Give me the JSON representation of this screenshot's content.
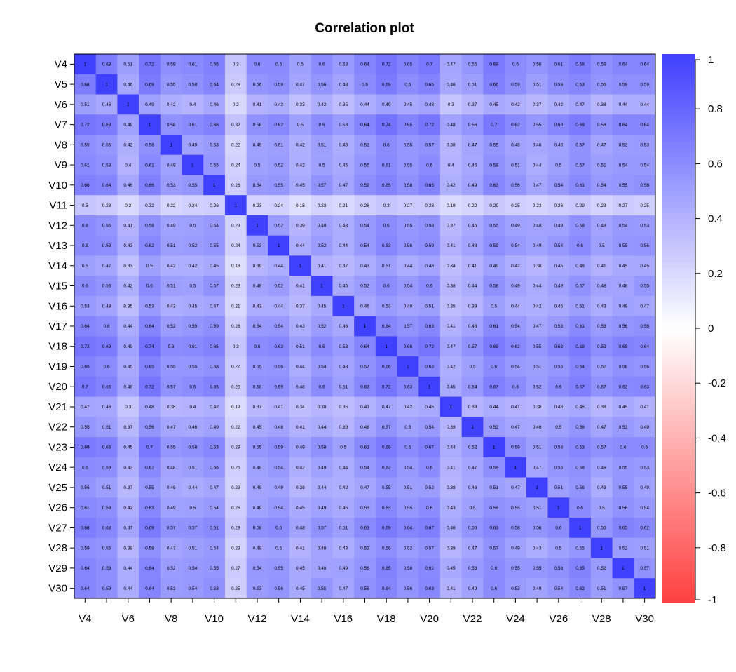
{
  "chart_data": {
    "type": "heatmap",
    "title": "Correlation plot",
    "variables": [
      "V4",
      "V5",
      "V6",
      "V7",
      "V8",
      "V9",
      "V10",
      "V11",
      "V12",
      "V13",
      "V14",
      "V15",
      "V16",
      "V17",
      "V18",
      "V19",
      "V20",
      "V21",
      "V22",
      "V23",
      "V24",
      "V25",
      "V26",
      "V27",
      "V28",
      "V29",
      "V30"
    ],
    "x_tick_labels": [
      "V4",
      "V6",
      "V8",
      "V10",
      "V12",
      "V14",
      "V16",
      "V18",
      "V20",
      "V22",
      "V24",
      "V26",
      "V28",
      "V30"
    ],
    "values": [
      [
        1,
        0.68,
        0.51,
        0.72,
        0.59,
        0.61,
        0.66,
        0.3,
        0.6,
        0.6,
        0.5,
        0.6,
        0.53,
        0.64,
        0.72,
        0.65,
        0.7,
        0.47,
        0.55,
        0.69,
        0.6,
        0.56,
        0.61,
        0.68,
        0.59,
        0.64,
        0.64
      ],
      [
        0.68,
        1,
        0.46,
        0.69,
        0.55,
        0.58,
        0.64,
        0.28,
        0.56,
        0.59,
        0.47,
        0.56,
        0.48,
        0.6,
        0.69,
        0.6,
        0.65,
        0.46,
        0.51,
        0.66,
        0.59,
        0.51,
        0.59,
        0.63,
        0.56,
        0.59,
        0.59
      ],
      [
        0.51,
        0.46,
        1,
        0.49,
        0.42,
        0.4,
        0.46,
        0.2,
        0.41,
        0.43,
        0.33,
        0.42,
        0.35,
        0.44,
        0.49,
        0.45,
        0.48,
        0.3,
        0.37,
        0.45,
        0.42,
        0.37,
        0.42,
        0.47,
        0.38,
        0.44,
        0.44
      ],
      [
        0.72,
        0.69,
        0.49,
        1,
        0.58,
        0.61,
        0.66,
        0.32,
        0.58,
        0.62,
        0.5,
        0.6,
        0.53,
        0.64,
        0.74,
        0.65,
        0.72,
        0.48,
        0.56,
        0.7,
        0.62,
        0.55,
        0.63,
        0.69,
        0.58,
        0.64,
        0.64
      ],
      [
        0.59,
        0.55,
        0.42,
        0.58,
        1,
        0.49,
        0.53,
        0.22,
        0.49,
        0.51,
        0.42,
        0.51,
        0.43,
        0.52,
        0.6,
        0.55,
        0.57,
        0.38,
        0.47,
        0.55,
        0.48,
        0.46,
        0.49,
        0.57,
        0.47,
        0.52,
        0.53
      ],
      [
        0.61,
        0.58,
        0.4,
        0.61,
        0.49,
        1,
        0.55,
        0.24,
        0.5,
        0.52,
        0.42,
        0.5,
        0.45,
        0.55,
        0.61,
        0.55,
        0.6,
        0.4,
        0.46,
        0.58,
        0.51,
        0.44,
        0.5,
        0.57,
        0.51,
        0.54,
        0.54
      ],
      [
        0.66,
        0.64,
        0.46,
        0.66,
        0.53,
        0.55,
        1,
        0.26,
        0.54,
        0.55,
        0.45,
        0.57,
        0.47,
        0.59,
        0.65,
        0.58,
        0.65,
        0.42,
        0.49,
        0.63,
        0.56,
        0.47,
        0.54,
        0.61,
        0.54,
        0.55,
        0.58
      ],
      [
        0.3,
        0.28,
        0.2,
        0.32,
        0.22,
        0.24,
        0.26,
        1,
        0.23,
        0.24,
        0.18,
        0.23,
        0.21,
        0.26,
        0.3,
        0.27,
        0.28,
        0.19,
        0.22,
        0.29,
        0.25,
        0.23,
        0.26,
        0.29,
        0.23,
        0.27,
        0.25
      ],
      [
        0.6,
        0.56,
        0.41,
        0.58,
        0.49,
        0.5,
        0.54,
        0.23,
        1,
        0.52,
        0.39,
        0.48,
        0.43,
        0.54,
        0.6,
        0.55,
        0.58,
        0.37,
        0.45,
        0.55,
        0.49,
        0.48,
        0.49,
        0.58,
        0.48,
        0.54,
        0.53
      ],
      [
        0.6,
        0.59,
        0.43,
        0.62,
        0.51,
        0.52,
        0.55,
        0.24,
        0.52,
        1,
        0.44,
        0.52,
        0.44,
        0.54,
        0.63,
        0.56,
        0.59,
        0.41,
        0.48,
        0.59,
        0.54,
        0.49,
        0.54,
        0.6,
        0.5,
        0.55,
        0.56
      ],
      [
        0.5,
        0.47,
        0.33,
        0.5,
        0.42,
        0.42,
        0.45,
        0.18,
        0.39,
        0.44,
        1,
        0.41,
        0.37,
        0.43,
        0.51,
        0.44,
        0.48,
        0.34,
        0.41,
        0.49,
        0.42,
        0.38,
        0.45,
        0.48,
        0.41,
        0.45,
        0.45
      ],
      [
        0.6,
        0.56,
        0.42,
        0.6,
        0.51,
        0.5,
        0.57,
        0.23,
        0.48,
        0.52,
        0.41,
        1,
        0.45,
        0.52,
        0.6,
        0.54,
        0.6,
        0.38,
        0.44,
        0.58,
        0.49,
        0.44,
        0.49,
        0.57,
        0.48,
        0.48,
        0.55
      ],
      [
        0.53,
        0.48,
        0.35,
        0.53,
        0.43,
        0.45,
        0.47,
        0.21,
        0.43,
        0.44,
        0.37,
        0.45,
        1,
        0.46,
        0.53,
        0.48,
        0.51,
        0.35,
        0.39,
        0.5,
        0.44,
        0.42,
        0.45,
        0.51,
        0.43,
        0.49,
        0.47
      ],
      [
        0.64,
        0.6,
        0.44,
        0.64,
        0.52,
        0.55,
        0.59,
        0.26,
        0.54,
        0.54,
        0.43,
        0.52,
        0.46,
        1,
        0.64,
        0.57,
        0.63,
        0.41,
        0.48,
        0.61,
        0.54,
        0.47,
        0.53,
        0.61,
        0.53,
        0.56,
        0.58
      ],
      [
        0.72,
        0.69,
        0.49,
        0.74,
        0.6,
        0.61,
        0.65,
        0.3,
        0.6,
        0.63,
        0.51,
        0.6,
        0.53,
        0.64,
        1,
        0.66,
        0.72,
        0.47,
        0.57,
        0.69,
        0.62,
        0.55,
        0.63,
        0.69,
        0.59,
        0.65,
        0.64
      ],
      [
        0.65,
        0.6,
        0.45,
        0.65,
        0.55,
        0.55,
        0.58,
        0.27,
        0.55,
        0.56,
        0.44,
        0.54,
        0.48,
        0.57,
        0.66,
        1,
        0.63,
        0.42,
        0.5,
        0.6,
        0.54,
        0.51,
        0.55,
        0.64,
        0.52,
        0.58,
        0.56
      ],
      [
        0.7,
        0.65,
        0.48,
        0.72,
        0.57,
        0.6,
        0.65,
        0.28,
        0.58,
        0.59,
        0.48,
        0.6,
        0.51,
        0.63,
        0.72,
        0.63,
        1,
        0.45,
        0.54,
        0.67,
        0.6,
        0.52,
        0.6,
        0.67,
        0.57,
        0.62,
        0.63
      ],
      [
        0.47,
        0.46,
        0.3,
        0.48,
        0.38,
        0.4,
        0.42,
        0.19,
        0.37,
        0.41,
        0.34,
        0.38,
        0.35,
        0.41,
        0.47,
        0.42,
        0.45,
        1,
        0.39,
        0.44,
        0.41,
        0.38,
        0.43,
        0.46,
        0.38,
        0.45,
        0.41
      ],
      [
        0.55,
        0.51,
        0.37,
        0.56,
        0.47,
        0.46,
        0.49,
        0.22,
        0.45,
        0.48,
        0.41,
        0.44,
        0.39,
        0.48,
        0.57,
        0.5,
        0.54,
        0.39,
        1,
        0.52,
        0.47,
        0.46,
        0.5,
        0.56,
        0.47,
        0.53,
        0.49
      ],
      [
        0.69,
        0.66,
        0.45,
        0.7,
        0.55,
        0.58,
        0.63,
        0.29,
        0.55,
        0.59,
        0.49,
        0.58,
        0.5,
        0.61,
        0.69,
        0.6,
        0.67,
        0.44,
        0.52,
        1,
        0.59,
        0.51,
        0.58,
        0.63,
        0.57,
        0.6,
        0.6
      ],
      [
        0.6,
        0.59,
        0.42,
        0.62,
        0.48,
        0.51,
        0.56,
        0.25,
        0.49,
        0.54,
        0.42,
        0.49,
        0.44,
        0.54,
        0.62,
        0.54,
        0.6,
        0.41,
        0.47,
        0.59,
        1,
        0.47,
        0.55,
        0.58,
        0.49,
        0.55,
        0.53
      ],
      [
        0.56,
        0.51,
        0.37,
        0.55,
        0.46,
        0.44,
        0.47,
        0.23,
        0.48,
        0.49,
        0.38,
        0.44,
        0.42,
        0.47,
        0.55,
        0.51,
        0.52,
        0.38,
        0.46,
        0.51,
        0.47,
        1,
        0.51,
        0.56,
        0.43,
        0.55,
        0.49
      ],
      [
        0.61,
        0.59,
        0.42,
        0.63,
        0.49,
        0.5,
        0.54,
        0.26,
        0.49,
        0.54,
        0.45,
        0.49,
        0.45,
        0.53,
        0.63,
        0.55,
        0.6,
        0.43,
        0.5,
        0.58,
        0.55,
        0.51,
        1,
        0.6,
        0.5,
        0.58,
        0.54
      ],
      [
        0.68,
        0.63,
        0.47,
        0.69,
        0.57,
        0.57,
        0.61,
        0.29,
        0.58,
        0.6,
        0.48,
        0.57,
        0.51,
        0.61,
        0.69,
        0.64,
        0.67,
        0.46,
        0.56,
        0.63,
        0.58,
        0.56,
        0.6,
        1,
        0.55,
        0.65,
        0.62
      ],
      [
        0.59,
        0.56,
        0.38,
        0.58,
        0.47,
        0.51,
        0.54,
        0.23,
        0.48,
        0.5,
        0.41,
        0.48,
        0.43,
        0.53,
        0.59,
        0.52,
        0.57,
        0.38,
        0.47,
        0.57,
        0.49,
        0.43,
        0.5,
        0.55,
        1,
        0.52,
        0.51
      ],
      [
        0.64,
        0.59,
        0.44,
        0.64,
        0.52,
        0.54,
        0.55,
        0.27,
        0.54,
        0.55,
        0.45,
        0.48,
        0.49,
        0.56,
        0.65,
        0.58,
        0.62,
        0.45,
        0.53,
        0.6,
        0.55,
        0.55,
        0.58,
        0.65,
        0.52,
        1,
        0.57
      ],
      [
        0.64,
        0.59,
        0.44,
        0.64,
        0.53,
        0.54,
        0.58,
        0.25,
        0.53,
        0.56,
        0.45,
        0.55,
        0.47,
        0.58,
        0.64,
        0.56,
        0.63,
        0.41,
        0.49,
        0.6,
        0.53,
        0.49,
        0.54,
        0.62,
        0.51,
        0.57,
        1
      ]
    ],
    "color_scale": {
      "min": -1,
      "max": 1,
      "low_color": "#FF4040",
      "mid_color": "#FFFFFF",
      "high_color": "#4040FF",
      "ticks": [
        1,
        0.8,
        0.6,
        0.4,
        0.2,
        0,
        -0.2,
        -0.4,
        -0.6,
        -0.8,
        -1
      ],
      "tick_labels": [
        "1",
        "0.8",
        "0.6",
        "0.4",
        "0.2",
        "0",
        "-0.2",
        "-0.4",
        "-0.6",
        "-0.8",
        "-1"
      ]
    },
    "legend_position": "right",
    "grid": false
  }
}
